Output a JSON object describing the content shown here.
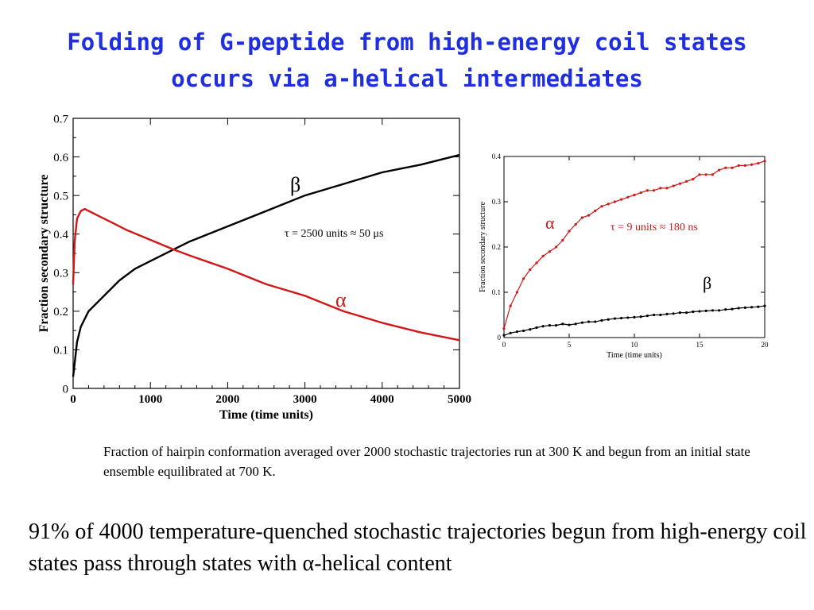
{
  "title": {
    "line1": "Folding of G-peptide from high-energy coil states",
    "line2": "occurs via a-helical intermediates"
  },
  "colors": {
    "title": "#1f2fe0",
    "alpha": "#d01818",
    "beta": "#000000"
  },
  "chart_data": [
    {
      "type": "line",
      "xlabel": "Time (time units)",
      "ylabel": "Fraction secondary structure",
      "xlim": [
        0,
        5000
      ],
      "ylim": [
        0,
        0.7
      ],
      "xticks": [
        "0",
        "1000",
        "2000",
        "3000",
        "4000",
        "5000"
      ],
      "yticks": [
        "0",
        "0.1",
        "0.2",
        "0.3",
        "0.4",
        "0.5",
        "0.6",
        "0.7"
      ],
      "grid": false,
      "annotation": "τ = 2500 units ≈ 50 μs",
      "series": [
        {
          "name": "β",
          "color": "#000000",
          "x": [
            0,
            50,
            100,
            200,
            400,
            600,
            800,
            1000,
            1300,
            1500,
            2000,
            2500,
            3000,
            3500,
            4000,
            4500,
            5000
          ],
          "y": [
            0.03,
            0.12,
            0.16,
            0.2,
            0.24,
            0.28,
            0.31,
            0.33,
            0.36,
            0.38,
            0.42,
            0.46,
            0.5,
            0.53,
            0.56,
            0.58,
            0.605
          ]
        },
        {
          "name": "α",
          "color": "#d01818",
          "x": [
            0,
            20,
            50,
            100,
            150,
            300,
            500,
            700,
            1000,
            1300,
            1500,
            2000,
            2500,
            3000,
            3500,
            4000,
            4500,
            5000
          ],
          "y": [
            0.27,
            0.38,
            0.44,
            0.46,
            0.465,
            0.45,
            0.43,
            0.41,
            0.385,
            0.36,
            0.345,
            0.31,
            0.27,
            0.24,
            0.2,
            0.17,
            0.145,
            0.125
          ]
        }
      ]
    },
    {
      "type": "line",
      "xlabel": "Time (time units)",
      "ylabel": "Fraction secondary structure",
      "xlim": [
        0,
        20
      ],
      "ylim": [
        0,
        0.4
      ],
      "xticks": [
        "0",
        "5",
        "10",
        "15",
        "20"
      ],
      "yticks": [
        "0",
        "0.1",
        "0.2",
        "0.3",
        "0.4"
      ],
      "grid": false,
      "annotation": "τ = 9 units ≈ 180 ns",
      "series": [
        {
          "name": "α",
          "color": "#d01818",
          "x": [
            0,
            0.5,
            1,
            1.5,
            2,
            2.5,
            3,
            3.5,
            4,
            4.5,
            5,
            5.5,
            6,
            6.5,
            7,
            7.5,
            8,
            8.5,
            9,
            9.5,
            10,
            10.5,
            11,
            11.5,
            12,
            12.5,
            13,
            13.5,
            14,
            14.5,
            15,
            15.5,
            16,
            16.5,
            17,
            17.5,
            18,
            18.5,
            19,
            19.5,
            20
          ],
          "y": [
            0.02,
            0.07,
            0.1,
            0.13,
            0.15,
            0.165,
            0.18,
            0.19,
            0.2,
            0.215,
            0.235,
            0.25,
            0.265,
            0.27,
            0.28,
            0.29,
            0.295,
            0.3,
            0.305,
            0.31,
            0.315,
            0.32,
            0.325,
            0.325,
            0.33,
            0.33,
            0.335,
            0.34,
            0.345,
            0.35,
            0.36,
            0.36,
            0.36,
            0.37,
            0.375,
            0.375,
            0.38,
            0.38,
            0.382,
            0.385,
            0.39
          ]
        },
        {
          "name": "β",
          "color": "#000000",
          "x": [
            0,
            0.5,
            1,
            1.5,
            2,
            2.5,
            3,
            3.5,
            4,
            4.5,
            5,
            5.5,
            6,
            6.5,
            7,
            7.5,
            8,
            8.5,
            9,
            9.5,
            10,
            10.5,
            11,
            11.5,
            12,
            12.5,
            13,
            13.5,
            14,
            14.5,
            15,
            15.5,
            16,
            16.5,
            17,
            17.5,
            18,
            18.5,
            19,
            19.5,
            20
          ],
          "y": [
            0.005,
            0.01,
            0.013,
            0.015,
            0.018,
            0.022,
            0.025,
            0.027,
            0.027,
            0.03,
            0.028,
            0.03,
            0.033,
            0.035,
            0.035,
            0.038,
            0.04,
            0.042,
            0.043,
            0.044,
            0.045,
            0.046,
            0.048,
            0.05,
            0.05,
            0.052,
            0.053,
            0.055,
            0.055,
            0.057,
            0.058,
            0.059,
            0.06,
            0.06,
            0.062,
            0.063,
            0.065,
            0.066,
            0.067,
            0.068,
            0.07
          ]
        }
      ]
    }
  ],
  "caption": "Fraction of hairpin conformation averaged over 2000 stochastic trajectories run at 300 K and begun from an initial state ensemble equilibrated at 700 K.",
  "bottom_text": "91% of 4000 temperature-quenched stochastic trajectories begun from high-energy coil states pass through states with α-helical content"
}
